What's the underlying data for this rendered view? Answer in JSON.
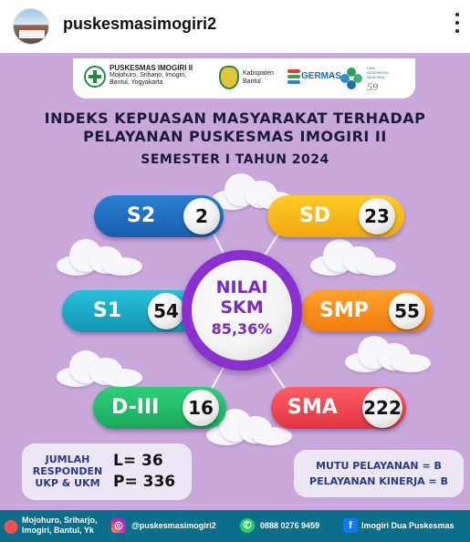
{
  "post": {
    "username": "puskesmasimogiri2"
  },
  "logos": {
    "puskesmas_name": "PUSKESMAS IMOGIRI II",
    "puskesmas_address_1": "Mojohuro, Sriharjo, Imogiri,",
    "puskesmas_address_2": "Bantul, Yogyakarta",
    "kabupaten_1": "Kabupaten",
    "kabupaten_2": "Bantul",
    "germas": "GERMAS",
    "hkn_1": "HARI",
    "hkn_2": "KESEHATAN",
    "hkn_3": "NASIONAL",
    "hkn_number": "59"
  },
  "title": {
    "line1": "INDEKS KEPUASAN MASYARAKAT TERHADAP",
    "line2": "PELAYANAN PUSKESMAS IMOGIRI II",
    "semester": "SEMESTER I TAHUN 2024"
  },
  "education": [
    {
      "id": "s2",
      "label": "S2",
      "value": "2",
      "color": "#1f6fc4"
    },
    {
      "id": "sd",
      "label": "SD",
      "value": "23",
      "color": "#f7b817"
    },
    {
      "id": "s1",
      "label": "S1",
      "value": "54",
      "color": "#1fadc8"
    },
    {
      "id": "smp",
      "label": "SMP",
      "value": "55",
      "color": "#f58e1b"
    },
    {
      "id": "d3",
      "label": "D-III",
      "value": "16",
      "color": "#22bd6a"
    },
    {
      "id": "sma",
      "label": "SMA",
      "value": "222",
      "color": "#ef4852"
    }
  ],
  "skm": {
    "line1": "NILAI",
    "line2": "SKM",
    "value": "85,36%"
  },
  "respondents": {
    "label_1": "JUMLAH",
    "label_2": "RESPONDEN",
    "label_3": "UKP & UKM",
    "male": "L= 36",
    "female": "P= 336"
  },
  "quality": {
    "line1": "MUTU PELAYANAN = B",
    "line2": "PELAYANAN KINERJA = B"
  },
  "footer": {
    "address_1": "Mojohuro, Sriharjo,",
    "address_2": "Imogiri, Bantul, Yk",
    "instagram": "@puskesmasimogiri2",
    "phone": "0888 0276 9459",
    "facebook": "Imogiri Dua Puskesmas"
  },
  "colors": {
    "background": "#c9a8dc",
    "center_ring": "#8a2fd0",
    "footer": "#0b6f8c"
  }
}
